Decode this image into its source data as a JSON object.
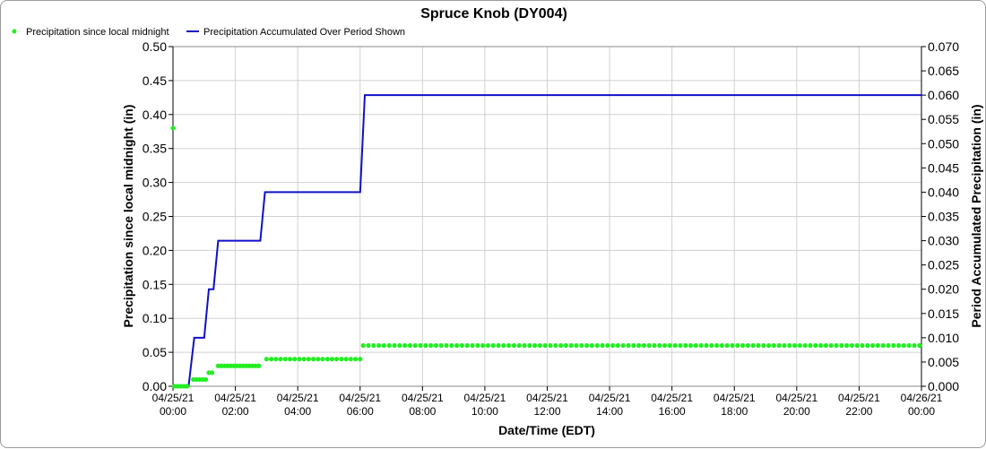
{
  "chart_data": {
    "type": "line",
    "title": "Spruce Knob (DY004)",
    "xlabel": "Date/Time (EDT)",
    "ylabel_left": "Precipitation since local midnight (in)",
    "ylabel_right": "Period Accumulated Precipitation (in)",
    "legend": [
      {
        "name": "Precipitation since local midnight",
        "marker": "dot",
        "color": "#22ee22"
      },
      {
        "name": "Precipitation Accumulated Over Period Shown",
        "marker": "line",
        "color": "#1010c8"
      }
    ],
    "grid": true,
    "x_unit": "hours after 04/25/21 00:00",
    "xlim": [
      0,
      24
    ],
    "ylim_left": [
      0,
      0.5
    ],
    "ylim_right": [
      0,
      0.07
    ],
    "x_ticks": [
      {
        "date": "04/25/21",
        "time": "00:00",
        "h": 0
      },
      {
        "date": "04/25/21",
        "time": "02:00",
        "h": 2
      },
      {
        "date": "04/25/21",
        "time": "04:00",
        "h": 4
      },
      {
        "date": "04/25/21",
        "time": "06:00",
        "h": 6
      },
      {
        "date": "04/25/21",
        "time": "08:00",
        "h": 8
      },
      {
        "date": "04/25/21",
        "time": "10:00",
        "h": 10
      },
      {
        "date": "04/25/21",
        "time": "12:00",
        "h": 12
      },
      {
        "date": "04/25/21",
        "time": "14:00",
        "h": 14
      },
      {
        "date": "04/25/21",
        "time": "16:00",
        "h": 16
      },
      {
        "date": "04/25/21",
        "time": "18:00",
        "h": 18
      },
      {
        "date": "04/25/21",
        "time": "20:00",
        "h": 20
      },
      {
        "date": "04/25/21",
        "time": "22:00",
        "h": 22
      },
      {
        "date": "04/26/21",
        "time": "00:00",
        "h": 24
      }
    ],
    "y_left_ticks": [
      "0.00",
      "0.05",
      "0.10",
      "0.15",
      "0.20",
      "0.25",
      "0.30",
      "0.35",
      "0.40",
      "0.45",
      "0.50"
    ],
    "y_right_ticks": [
      "0.000",
      "0.005",
      "0.010",
      "0.015",
      "0.020",
      "0.025",
      "0.030",
      "0.035",
      "0.040",
      "0.045",
      "0.050",
      "0.055",
      "0.060",
      "0.065",
      "0.070"
    ],
    "series_since_midnight": {
      "name": "Precipitation since local midnight",
      "points": [
        [
          0,
          0.38
        ],
        [
          0.05,
          0.0
        ],
        [
          0.15,
          0.0
        ],
        [
          0.25,
          0.0
        ],
        [
          0.35,
          0.0
        ],
        [
          0.45,
          0.0
        ],
        [
          0.65,
          0.01
        ],
        [
          0.75,
          0.01
        ],
        [
          0.85,
          0.01
        ],
        [
          0.95,
          0.01
        ],
        [
          1.05,
          0.01
        ],
        [
          1.15,
          0.02
        ],
        [
          1.25,
          0.02
        ],
        [
          1.45,
          0.03
        ],
        [
          1.55,
          0.03
        ],
        [
          1.65,
          0.03
        ],
        [
          1.75,
          0.03
        ],
        [
          1.85,
          0.03
        ],
        [
          1.95,
          0.03
        ],
        [
          2.05,
          0.03
        ],
        [
          2.15,
          0.03
        ],
        [
          2.25,
          0.03
        ],
        [
          2.35,
          0.03
        ],
        [
          2.45,
          0.03
        ],
        [
          2.55,
          0.03
        ],
        [
          2.65,
          0.03
        ],
        [
          2.75,
          0.03
        ],
        [
          3.0,
          0.04
        ],
        [
          3.15,
          0.04
        ],
        [
          3.3,
          0.04
        ],
        [
          3.45,
          0.04
        ],
        [
          3.6,
          0.04
        ],
        [
          3.75,
          0.04
        ],
        [
          3.9,
          0.04
        ],
        [
          4.05,
          0.04
        ],
        [
          4.2,
          0.04
        ],
        [
          4.35,
          0.04
        ],
        [
          4.5,
          0.04
        ],
        [
          4.65,
          0.04
        ],
        [
          4.8,
          0.04
        ],
        [
          4.95,
          0.04
        ],
        [
          5.1,
          0.04
        ],
        [
          5.25,
          0.04
        ],
        [
          5.4,
          0.04
        ],
        [
          5.55,
          0.04
        ],
        [
          5.7,
          0.04
        ],
        [
          5.85,
          0.04
        ],
        [
          6.0,
          0.04
        ]
      ],
      "flat_after": {
        "start": 6.1,
        "end": 24,
        "step": 0.1667,
        "value": 0.06
      }
    },
    "series_accumulated": {
      "name": "Precipitation Accumulated Over Period Shown",
      "points": [
        [
          0.0,
          0.0
        ],
        [
          0.5,
          0.0
        ],
        [
          0.68,
          0.01
        ],
        [
          1.0,
          0.01
        ],
        [
          1.15,
          0.02
        ],
        [
          1.3,
          0.02
        ],
        [
          1.45,
          0.03
        ],
        [
          2.8,
          0.03
        ],
        [
          2.95,
          0.04
        ],
        [
          6.0,
          0.04
        ],
        [
          6.15,
          0.06
        ],
        [
          24,
          0.06
        ]
      ]
    }
  }
}
